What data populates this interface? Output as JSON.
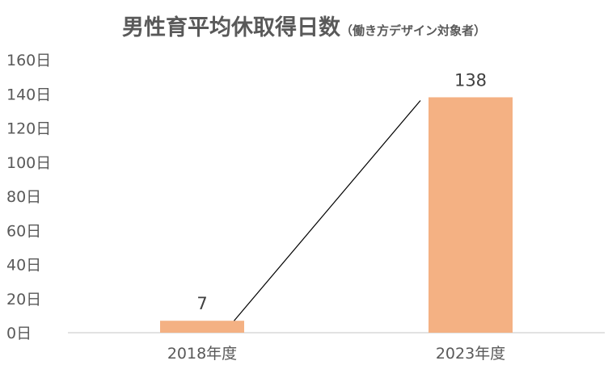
{
  "chart_data": {
    "type": "bar",
    "title": "男性育平均休取得日数",
    "subtitle": "（働き方デザイン対象者）",
    "categories": [
      "2018年度",
      "2023年度"
    ],
    "values": [
      7,
      138
    ],
    "value_labels": [
      "7",
      "138"
    ],
    "yticks": [
      "0日",
      "20日",
      "40日",
      "60日",
      "80日",
      "100日",
      "120日",
      "140日",
      "160日"
    ],
    "ylim": [
      0,
      160
    ],
    "xlabel": "",
    "ylabel": "",
    "grid": false,
    "legend": "none",
    "bar_color": "#F4B183",
    "connector": true,
    "connector_color": "#000000",
    "text_color": "#595959"
  }
}
